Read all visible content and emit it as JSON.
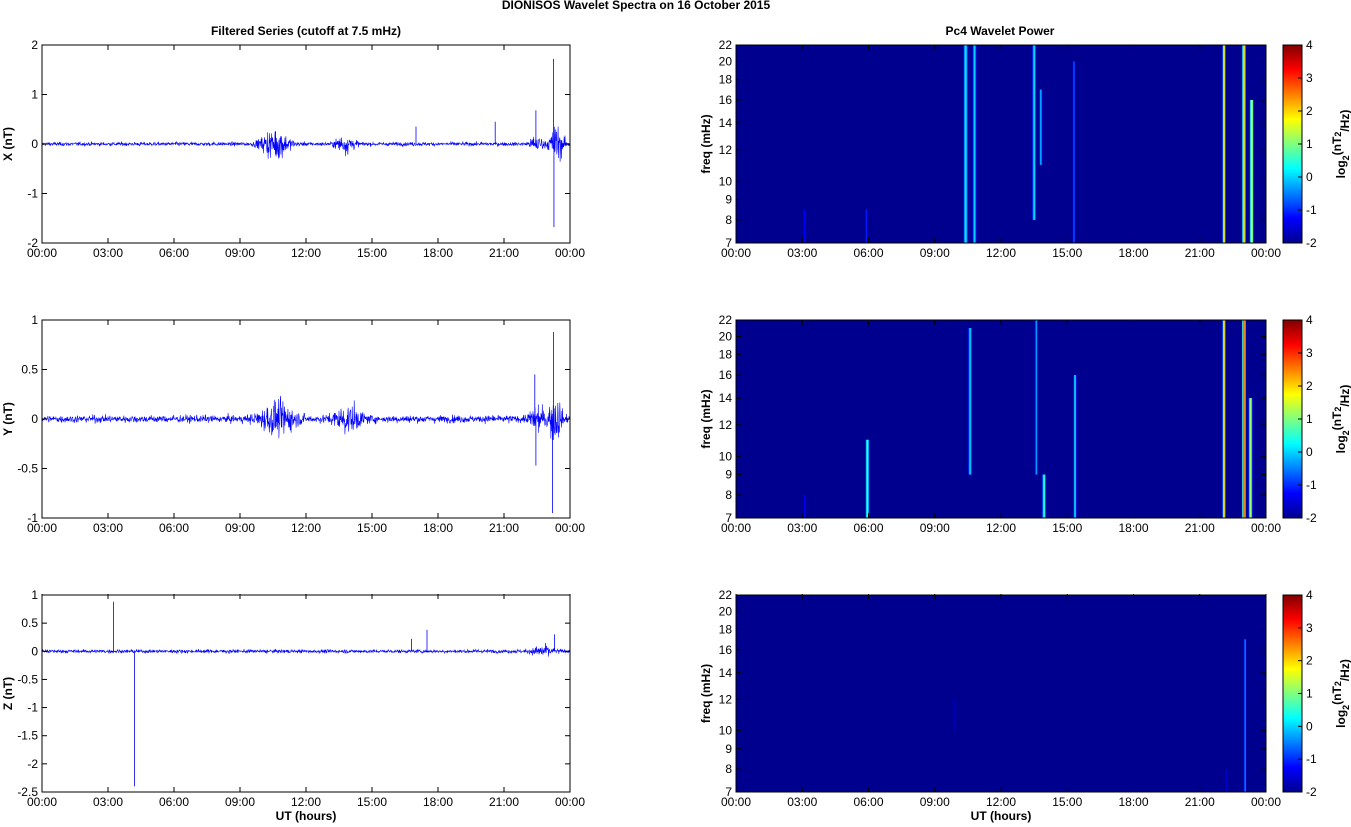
{
  "figure": {
    "suptitle": "DIONISOS Wavelet Spectra on 16 October   2015",
    "left_title": "Filtered Series (cutoff at 7.5 mHz)",
    "right_title": "Pc4 Wavelet Power",
    "colorbar_label": "log2(nT2/Hz)",
    "colors": {
      "trace": "#0000ff",
      "background": "#ffffff",
      "spectrogram_floor": "#00008f"
    }
  },
  "chart_data": [
    {
      "type": "line",
      "panel": "filtered-x",
      "ylabel": "X (nT)",
      "xlabel": "",
      "x_ticks": [
        "00:00",
        "03:00",
        "06:00",
        "09:00",
        "12:00",
        "15:00",
        "18:00",
        "21:00",
        "00:00"
      ],
      "xlim_hours": [
        0,
        24
      ],
      "ylim": [
        -2,
        2
      ],
      "y_ticks": [
        2,
        1,
        0,
        -1,
        -2
      ],
      "y_tick_labels": [
        "2",
        "1",
        "0",
        "-1",
        "-2"
      ],
      "noise_amplitude": 0.06,
      "bursts": [
        {
          "t": 10.6,
          "amp": 0.5,
          "width": 0.6
        },
        {
          "t": 13.8,
          "amp": 0.3,
          "width": 0.4
        },
        {
          "t": 22.5,
          "amp": 0.25,
          "width": 0.3
        },
        {
          "t": 23.4,
          "amp": 0.6,
          "width": 0.3
        }
      ],
      "spikes": [
        {
          "t": 23.25,
          "value": 1.72
        },
        {
          "t": 23.27,
          "value": -1.68
        },
        {
          "t": 22.45,
          "value": 0.68
        },
        {
          "t": 17.0,
          "value": 0.35
        },
        {
          "t": 20.6,
          "value": 0.45
        }
      ]
    },
    {
      "type": "line",
      "panel": "filtered-y",
      "ylabel": "Y (nT)",
      "xlabel": "",
      "x_ticks": [
        "00:00",
        "03:00",
        "06:00",
        "09:00",
        "12:00",
        "15:00",
        "18:00",
        "21:00",
        "00:00"
      ],
      "xlim_hours": [
        0,
        24
      ],
      "ylim": [
        -1,
        1
      ],
      "y_ticks": [
        1,
        0.5,
        0,
        -0.5,
        -1
      ],
      "y_tick_labels": [
        "1",
        "0.5",
        "0",
        "-0.5",
        "-1"
      ],
      "noise_amplitude": 0.06,
      "bursts": [
        {
          "t": 10.7,
          "amp": 0.25,
          "width": 0.8
        },
        {
          "t": 13.9,
          "amp": 0.2,
          "width": 0.6
        },
        {
          "t": 22.5,
          "amp": 0.2,
          "width": 0.3
        },
        {
          "t": 23.3,
          "amp": 0.4,
          "width": 0.3
        }
      ],
      "spikes": [
        {
          "t": 23.25,
          "value": 0.88
        },
        {
          "t": 23.2,
          "value": -0.95
        },
        {
          "t": 22.45,
          "value": -0.47
        },
        {
          "t": 22.4,
          "value": 0.45
        }
      ]
    },
    {
      "type": "line",
      "panel": "filtered-z",
      "ylabel": "Z (nT)",
      "xlabel": "UT (hours)",
      "x_ticks": [
        "00:00",
        "03:00",
        "06:00",
        "09:00",
        "12:00",
        "15:00",
        "18:00",
        "21:00",
        "00:00"
      ],
      "xlim_hours": [
        0,
        24
      ],
      "ylim": [
        -2.5,
        1
      ],
      "y_ticks": [
        1,
        0.5,
        0,
        -0.5,
        -1,
        -1.5,
        -2,
        -2.5
      ],
      "y_tick_labels": [
        "1",
        "0.5",
        "0",
        "-0.5",
        "-1",
        "-1.5",
        "-2",
        "-2.5"
      ],
      "noise_amplitude": 0.05,
      "bursts": [
        {
          "t": 22.8,
          "amp": 0.15,
          "width": 0.5
        }
      ],
      "spikes": [
        {
          "t": 3.25,
          "value": 0.88
        },
        {
          "t": 4.2,
          "value": -2.4
        },
        {
          "t": 17.5,
          "value": 0.38
        },
        {
          "t": 16.8,
          "value": 0.22
        },
        {
          "t": 23.3,
          "value": 0.3
        }
      ]
    },
    {
      "type": "heatmap",
      "panel": "wavelet-x",
      "ylabel": "freq (mHz)",
      "xlabel": "",
      "x_ticks": [
        "00:00",
        "03:00",
        "06:00",
        "09:00",
        "12:00",
        "15:00",
        "18:00",
        "21:00",
        "00:00"
      ],
      "xlim_hours": [
        0,
        24
      ],
      "ylim_mhz": [
        7,
        22
      ],
      "y_scale": "log",
      "y_ticks": [
        7,
        8,
        9,
        10,
        12,
        14,
        16,
        18,
        20,
        22
      ],
      "y_tick_labels": [
        "7",
        "8",
        "9",
        "10",
        "12",
        "14",
        "16",
        "18",
        "20",
        "22"
      ],
      "colorbar": {
        "min": -2,
        "max": 4,
        "ticks": [
          4,
          3,
          2,
          1,
          0,
          -1,
          -2
        ],
        "tick_labels": [
          "4",
          "3",
          "2",
          "1",
          "0",
          "-1",
          "-2"
        ]
      },
      "features": [
        {
          "t": 10.4,
          "fmin": 7,
          "fmax": 22,
          "peak": 0.4,
          "width": 0.12
        },
        {
          "t": 10.8,
          "fmin": 7,
          "fmax": 22,
          "peak": 0.2,
          "width": 0.1
        },
        {
          "t": 13.5,
          "fmin": 8,
          "fmax": 22,
          "peak": 0.3,
          "width": 0.1
        },
        {
          "t": 13.8,
          "fmin": 11,
          "fmax": 17,
          "peak": 0.0,
          "width": 0.08
        },
        {
          "t": 15.3,
          "fmin": 7,
          "fmax": 20,
          "peak": -0.6,
          "width": 0.06
        },
        {
          "t": 3.1,
          "fmin": 7,
          "fmax": 8.5,
          "peak": -1.2,
          "width": 0.06
        },
        {
          "t": 5.9,
          "fmin": 7,
          "fmax": 8.5,
          "peak": -1.0,
          "width": 0.06
        },
        {
          "t": 22.1,
          "fmin": 7,
          "fmax": 22,
          "peak": 2.3,
          "width": 0.08
        },
        {
          "t": 23.0,
          "fmin": 7,
          "fmax": 22,
          "peak": 2.6,
          "width": 0.1
        },
        {
          "t": 23.35,
          "fmin": 7,
          "fmax": 16,
          "peak": 2.0,
          "width": 0.1
        }
      ]
    },
    {
      "type": "heatmap",
      "panel": "wavelet-y",
      "ylabel": "freq (mHz)",
      "xlabel": "",
      "x_ticks": [
        "00:00",
        "03:00",
        "06:00",
        "09:00",
        "12:00",
        "15:00",
        "18:00",
        "21:00",
        "00:00"
      ],
      "xlim_hours": [
        0,
        24
      ],
      "ylim_mhz": [
        7,
        22
      ],
      "y_scale": "log",
      "y_ticks": [
        7,
        8,
        9,
        10,
        12,
        14,
        16,
        18,
        20,
        22
      ],
      "y_tick_labels": [
        "7",
        "8",
        "9",
        "10",
        "12",
        "14",
        "16",
        "18",
        "20",
        "22"
      ],
      "colorbar": {
        "min": -2,
        "max": 4,
        "ticks": [
          4,
          3,
          2,
          1,
          0,
          -1,
          -2
        ],
        "tick_labels": [
          "4",
          "3",
          "2",
          "1",
          "0",
          "-1",
          "-2"
        ]
      },
      "features": [
        {
          "t": 5.95,
          "fmin": 7,
          "fmax": 11,
          "peak": 1.0,
          "width": 0.1
        },
        {
          "t": 10.6,
          "fmin": 9,
          "fmax": 21,
          "peak": 0.2,
          "width": 0.1
        },
        {
          "t": 13.6,
          "fmin": 9,
          "fmax": 22,
          "peak": -0.2,
          "width": 0.08
        },
        {
          "t": 13.95,
          "fmin": 7,
          "fmax": 9,
          "peak": 0.8,
          "width": 0.1
        },
        {
          "t": 15.35,
          "fmin": 7,
          "fmax": 16,
          "peak": 0.3,
          "width": 0.08
        },
        {
          "t": 3.1,
          "fmin": 7,
          "fmax": 8,
          "peak": -1.3,
          "width": 0.05
        },
        {
          "t": 22.1,
          "fmin": 7,
          "fmax": 22,
          "peak": 2.5,
          "width": 0.08
        },
        {
          "t": 23.0,
          "fmin": 7,
          "fmax": 22,
          "peak": 3.3,
          "width": 0.1
        },
        {
          "t": 23.3,
          "fmin": 7,
          "fmax": 14,
          "peak": 1.5,
          "width": 0.1
        }
      ]
    },
    {
      "type": "heatmap",
      "panel": "wavelet-z",
      "ylabel": "freq (mHz)",
      "xlabel": "UT (hours)",
      "x_ticks": [
        "00:00",
        "03:00",
        "06:00",
        "09:00",
        "12:00",
        "15:00",
        "18:00",
        "21:00",
        "00:00"
      ],
      "xlim_hours": [
        0,
        24
      ],
      "ylim_mhz": [
        7,
        22
      ],
      "y_scale": "log",
      "y_ticks": [
        7,
        8,
        9,
        10,
        12,
        14,
        16,
        18,
        20,
        22
      ],
      "y_tick_labels": [
        "7",
        "8",
        "9",
        "10",
        "12",
        "14",
        "16",
        "18",
        "20",
        "22"
      ],
      "colorbar": {
        "min": -2,
        "max": 4,
        "ticks": [
          4,
          3,
          2,
          1,
          0,
          -1,
          -2
        ],
        "tick_labels": [
          "4",
          "3",
          "2",
          "1",
          "0",
          "-1",
          "-2"
        ]
      },
      "features": [
        {
          "t": 23.05,
          "fmin": 7,
          "fmax": 17,
          "peak": -0.3,
          "width": 0.06
        },
        {
          "t": 22.2,
          "fmin": 7,
          "fmax": 8,
          "peak": -1.5,
          "width": 0.05
        },
        {
          "t": 9.9,
          "fmin": 10,
          "fmax": 12,
          "peak": -1.7,
          "width": 0.05
        }
      ]
    }
  ]
}
